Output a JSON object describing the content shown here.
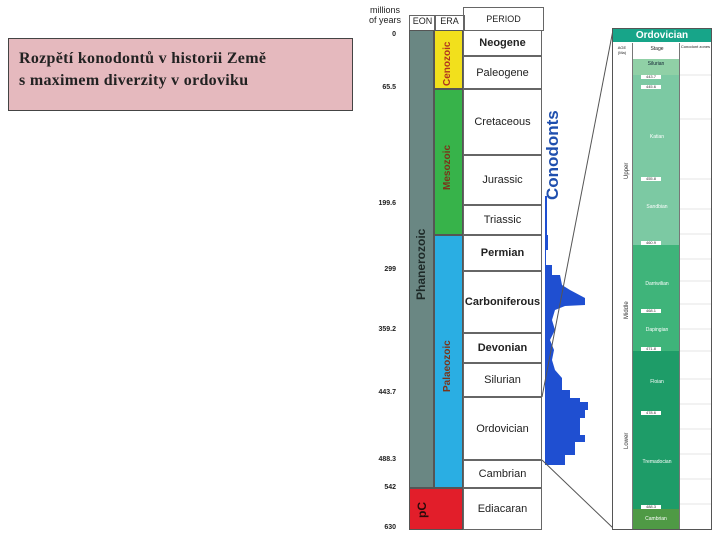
{
  "caption": {
    "line1": "Rozpětí konodontů v historii Země",
    "line2": "s maximem diverzity v ordoviku"
  },
  "headers": {
    "age": "millions\nof years",
    "eon": "EON",
    "era": "ERA",
    "period": "PERIOD"
  },
  "ages": [
    "0",
    "65.5",
    "199.6",
    "299",
    "359.2",
    "443.7",
    "488.3",
    "542",
    "630"
  ],
  "eons": {
    "phanerozoic": "Phanerozoic",
    "precambrian": "pC"
  },
  "eras": {
    "cenozoic": "Cenozoic",
    "mesozoic": "Mesozoic",
    "palaeozoic": "Palaeozoic"
  },
  "periods": [
    "Neogene",
    "Paleogene",
    "Cretaceous",
    "Jurassic",
    "Triassic",
    "Permian",
    "Carboniferous",
    "Devonian",
    "Silurian",
    "Ordovician",
    "Cambrian",
    "Ediacaran"
  ],
  "conodonts_label": "Conodonts",
  "colors": {
    "eon": "#6a8783",
    "precambrian": "#e21e2a",
    "cenozoic": "#f2e01c",
    "mesozoic": "#37b34a",
    "palaeozoic": "#2aaee3",
    "conodonts": "#1f4fd1",
    "ordovician": "#17a589"
  },
  "detail": {
    "title": "Ordovician",
    "col_age": "AGE (Ma)",
    "col_stage": "Stage",
    "col_zone": "Conodont zones",
    "silurian": "Silurian",
    "upper": "Upper",
    "middle": "Middle",
    "lower": "Lower",
    "stages": [
      "Katian",
      "Sandbian",
      "Darriwilian",
      "Dapingian",
      "Floian",
      "Tremadocian"
    ],
    "cambrian": "Cambrian",
    "boundary_ages": [
      "443.7",
      "445.6",
      "455.8",
      "460.9",
      "468.1",
      "471.8",
      "478.6",
      "488.3"
    ]
  }
}
